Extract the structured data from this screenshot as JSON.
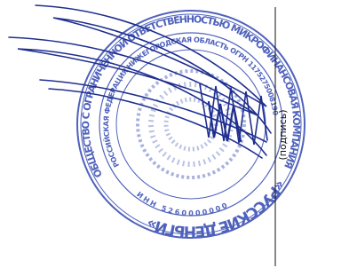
{
  "stamp": {
    "outer_text": "ОБЩЕСТВО С ОГРАНИЧЕННОЙ ОТВЕТСТВЕННОСТЬЮ МИКРОФИНАНСОВАЯ КОМПАНИЯ",
    "company_name": "«РУССКИЕ ДЕНЬГИ»",
    "inner_text": "РОССИЙСКАЯ ФЕДЕРАЦИЯ НИЖЕГОРОДСКАЯ ОБЛАСТЬ ОГРН 1175275008190",
    "inn_text": "ИНН 5260000000"
  },
  "signature_label": "(подпись)"
}
